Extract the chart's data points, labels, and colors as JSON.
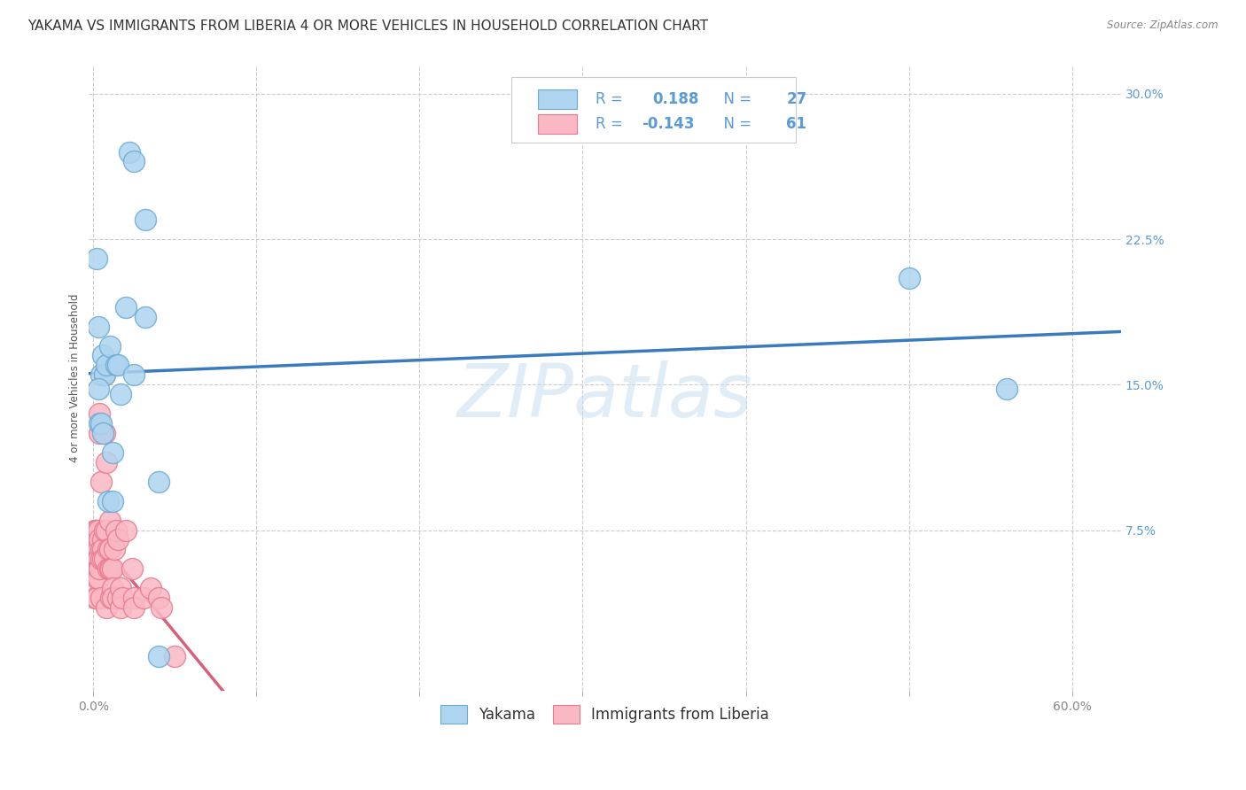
{
  "title": "YAKAMA VS IMMIGRANTS FROM LIBERIA 4 OR MORE VEHICLES IN HOUSEHOLD CORRELATION CHART",
  "source": "Source: ZipAtlas.com",
  "ylabel": "4 or more Vehicles in Household",
  "yakama_color": "#aed4f0",
  "liberia_color": "#f9b8c4",
  "yakama_edge_color": "#6aabd2",
  "liberia_edge_color": "#e87a90",
  "yakama_line_color": "#3a7abf",
  "liberia_line_color": "#d9607a",
  "R_yakama": 0.188,
  "N_yakama": 27,
  "R_liberia": -0.143,
  "N_liberia": 61,
  "watermark": "ZIPatlas",
  "background_color": "#ffffff",
  "ylim": [
    -0.008,
    0.315
  ],
  "xlim": [
    -0.003,
    0.63
  ],
  "yakama_points_x": [
    0.002,
    0.003,
    0.004,
    0.005,
    0.006,
    0.007,
    0.008,
    0.009,
    0.01,
    0.012,
    0.012,
    0.014,
    0.015,
    0.017,
    0.02,
    0.022,
    0.025,
    0.032,
    0.032,
    0.04,
    0.04,
    0.5,
    0.56,
    0.003,
    0.005,
    0.006,
    0.025
  ],
  "yakama_points_y": [
    0.215,
    0.18,
    0.13,
    0.155,
    0.165,
    0.155,
    0.16,
    0.09,
    0.17,
    0.09,
    0.115,
    0.16,
    0.16,
    0.145,
    0.19,
    0.27,
    0.265,
    0.235,
    0.185,
    0.1,
    0.01,
    0.205,
    0.148,
    0.148,
    0.13,
    0.125,
    0.155
  ],
  "liberia_points_x": [
    0.001,
    0.001,
    0.001,
    0.001,
    0.001,
    0.002,
    0.002,
    0.002,
    0.002,
    0.002,
    0.002,
    0.002,
    0.003,
    0.003,
    0.003,
    0.003,
    0.003,
    0.004,
    0.004,
    0.004,
    0.004,
    0.005,
    0.005,
    0.005,
    0.005,
    0.006,
    0.006,
    0.006,
    0.007,
    0.007,
    0.007,
    0.007,
    0.008,
    0.008,
    0.008,
    0.009,
    0.009,
    0.01,
    0.01,
    0.01,
    0.011,
    0.011,
    0.012,
    0.012,
    0.012,
    0.013,
    0.014,
    0.015,
    0.015,
    0.017,
    0.017,
    0.018,
    0.02,
    0.024,
    0.025,
    0.025,
    0.031,
    0.035,
    0.04,
    0.042,
    0.05
  ],
  "liberia_points_y": [
    0.075,
    0.075,
    0.065,
    0.055,
    0.04,
    0.075,
    0.07,
    0.065,
    0.06,
    0.055,
    0.05,
    0.04,
    0.075,
    0.065,
    0.06,
    0.055,
    0.05,
    0.135,
    0.125,
    0.07,
    0.055,
    0.1,
    0.065,
    0.06,
    0.04,
    0.07,
    0.065,
    0.06,
    0.155,
    0.125,
    0.075,
    0.06,
    0.11,
    0.075,
    0.035,
    0.065,
    0.055,
    0.08,
    0.065,
    0.055,
    0.055,
    0.04,
    0.055,
    0.045,
    0.04,
    0.065,
    0.075,
    0.07,
    0.04,
    0.045,
    0.035,
    0.04,
    0.075,
    0.055,
    0.04,
    0.035,
    0.04,
    0.045,
    0.04,
    0.035,
    0.01
  ],
  "grid_color": "#cccccc",
  "tick_color_x": "#888888",
  "tick_color_y": "#5b9bd5",
  "title_fontsize": 11,
  "axis_label_fontsize": 8.5,
  "tick_fontsize": 10,
  "legend_fontsize": 12
}
